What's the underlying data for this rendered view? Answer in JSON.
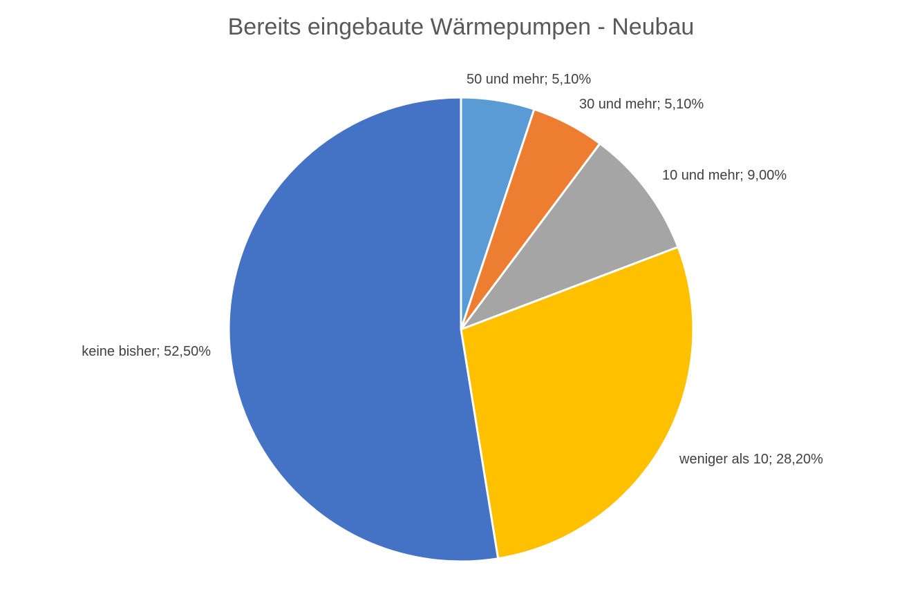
{
  "chart_data": {
    "type": "pie",
    "title": "Bereits eingebaute Wärmepumpen - Neubau",
    "categories": [
      "50 und mehr",
      "30 und mehr",
      "10 und mehr",
      "weniger als 10",
      "keine bisher"
    ],
    "values": [
      5.1,
      5.1,
      9.0,
      28.2,
      52.5
    ],
    "value_labels": [
      "5,10%",
      "5,10%",
      "9,00%",
      "28,20%",
      "52,50%"
    ],
    "data_labels": [
      "50 und mehr; 5,10%",
      "30 und mehr; 5,10%",
      "10 und mehr; 9,00%",
      "weniger als 10; 28,20%",
      "keine bisher; 52,50%"
    ],
    "colors": [
      "#5B9BD5",
      "#ED7D31",
      "#A5A5A5",
      "#FFC000",
      "#4472C4"
    ],
    "start_angle": "12 o'clock",
    "direction": "clockwise",
    "legend": "none"
  }
}
